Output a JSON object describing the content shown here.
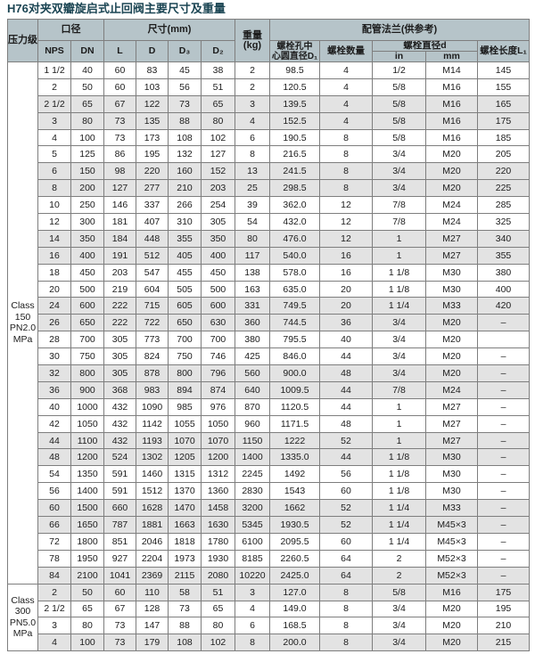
{
  "title": "H76对夹双瓣旋启式止回阀主要尺寸及重量",
  "colors": {
    "header_bg": "#b6c4c9",
    "stripe": "#e3e3e3",
    "border": "#7e7e7e",
    "title_color": "#1b4553"
  },
  "table": {
    "headers": {
      "pressure_class": "压力级",
      "bore": "口径",
      "nps": "NPS",
      "dn": "DN",
      "dims": "尺寸(mm)",
      "l": "L",
      "d": "D",
      "d3": "D₃",
      "d2": "D₂",
      "weight_line1": "重量",
      "weight_line2": "(kg)",
      "flange": "配管法兰(供参考)",
      "bolt_circle_line1": "螺栓孔中",
      "bolt_circle_line2": "心圆直径D₁",
      "bolt_qty": "螺栓数量",
      "bolt_dia": "螺栓直径d",
      "inch": "in",
      "mm": "mm",
      "bolt_len": "螺栓长度L₁"
    },
    "sections": [
      {
        "class_label": [
          "Class",
          "150",
          "PN2.0",
          "MPa"
        ],
        "rows": [
          [
            "1 1/2",
            "40",
            "60",
            "83",
            "45",
            "38",
            "2",
            "98.5",
            "4",
            "1/2",
            "M14",
            "145"
          ],
          [
            "2",
            "50",
            "60",
            "103",
            "56",
            "51",
            "2",
            "120.5",
            "4",
            "5/8",
            "M16",
            "155"
          ],
          [
            "2 1/2",
            "65",
            "67",
            "122",
            "73",
            "65",
            "3",
            "139.5",
            "4",
            "5/8",
            "M16",
            "165"
          ],
          [
            "3",
            "80",
            "73",
            "135",
            "88",
            "80",
            "4",
            "152.5",
            "4",
            "5/8",
            "M16",
            "175"
          ],
          [
            "4",
            "100",
            "73",
            "173",
            "108",
            "102",
            "6",
            "190.5",
            "8",
            "5/8",
            "M16",
            "185"
          ],
          [
            "5",
            "125",
            "86",
            "195",
            "132",
            "127",
            "8",
            "216.5",
            "8",
            "3/4",
            "M20",
            "205"
          ],
          [
            "6",
            "150",
            "98",
            "220",
            "160",
            "152",
            "13",
            "241.5",
            "8",
            "3/4",
            "M20",
            "220"
          ],
          [
            "8",
            "200",
            "127",
            "277",
            "210",
            "203",
            "25",
            "298.5",
            "8",
            "3/4",
            "M20",
            "225"
          ],
          [
            "10",
            "250",
            "146",
            "337",
            "266",
            "254",
            "39",
            "362.0",
            "12",
            "7/8",
            "M24",
            "285"
          ],
          [
            "12",
            "300",
            "181",
            "407",
            "310",
            "305",
            "54",
            "432.0",
            "12",
            "7/8",
            "M24",
            "325"
          ],
          [
            "14",
            "350",
            "184",
            "448",
            "355",
            "350",
            "80",
            "476.0",
            "12",
            "1",
            "M27",
            "340"
          ],
          [
            "16",
            "400",
            "191",
            "512",
            "405",
            "400",
            "117",
            "540.0",
            "16",
            "1",
            "M27",
            "355"
          ],
          [
            "18",
            "450",
            "203",
            "547",
            "455",
            "450",
            "138",
            "578.0",
            "16",
            "1 1/8",
            "M30",
            "380"
          ],
          [
            "20",
            "500",
            "219",
            "604",
            "505",
            "500",
            "163",
            "635.0",
            "20",
            "1 1/8",
            "M30",
            "400"
          ],
          [
            "24",
            "600",
            "222",
            "715",
            "605",
            "600",
            "331",
            "749.5",
            "20",
            "1 1/4",
            "M33",
            "420"
          ],
          [
            "26",
            "650",
            "222",
            "722",
            "650",
            "630",
            "360",
            "744.5",
            "36",
            "3/4",
            "M20",
            "–"
          ],
          [
            "28",
            "700",
            "305",
            "773",
            "700",
            "700",
            "380",
            "795.5",
            "40",
            "3/4",
            "M20",
            ""
          ],
          [
            "30",
            "750",
            "305",
            "824",
            "750",
            "746",
            "425",
            "846.0",
            "44",
            "3/4",
            "M20",
            "–"
          ],
          [
            "32",
            "800",
            "305",
            "878",
            "800",
            "796",
            "560",
            "900.0",
            "48",
            "3/4",
            "M20",
            "–"
          ],
          [
            "36",
            "900",
            "368",
            "983",
            "894",
            "874",
            "640",
            "1009.5",
            "44",
            "7/8",
            "M24",
            "–"
          ],
          [
            "40",
            "1000",
            "432",
            "1090",
            "985",
            "976",
            "870",
            "1120.5",
            "44",
            "1",
            "M27",
            "–"
          ],
          [
            "42",
            "1050",
            "432",
            "1142",
            "1055",
            "1050",
            "960",
            "1171.5",
            "48",
            "1",
            "M27",
            "–"
          ],
          [
            "44",
            "1100",
            "432",
            "1193",
            "1070",
            "1070",
            "1150",
            "1222",
            "52",
            "1",
            "M27",
            "–"
          ],
          [
            "48",
            "1200",
            "524",
            "1302",
            "1205",
            "1200",
            "1400",
            "1335.0",
            "44",
            "1 1/8",
            "M30",
            "–"
          ],
          [
            "54",
            "1350",
            "591",
            "1460",
            "1315",
            "1312",
            "2245",
            "1492",
            "56",
            "1 1/8",
            "M30",
            "–"
          ],
          [
            "56",
            "1400",
            "591",
            "1512",
            "1370",
            "1360",
            "2830",
            "1543",
            "60",
            "1 1/8",
            "M30",
            "–"
          ],
          [
            "60",
            "1500",
            "660",
            "1628",
            "1470",
            "1458",
            "3200",
            "1662",
            "52",
            "1 1/4",
            "M33",
            "–"
          ],
          [
            "66",
            "1650",
            "787",
            "1881",
            "1663",
            "1630",
            "5345",
            "1930.5",
            "52",
            "1 1/4",
            "M45×3",
            "–"
          ],
          [
            "72",
            "1800",
            "851",
            "2046",
            "1818",
            "1780",
            "6100",
            "2095.5",
            "60",
            "1 1/4",
            "M45×3",
            "–"
          ],
          [
            "78",
            "1950",
            "927",
            "2204",
            "1973",
            "1930",
            "8185",
            "2260.5",
            "64",
            "2",
            "M52×3",
            "–"
          ],
          [
            "84",
            "2100",
            "1041",
            "2369",
            "2115",
            "2080",
            "10220",
            "2425.0",
            "64",
            "2",
            "M52×3",
            "–"
          ]
        ]
      },
      {
        "class_label": [
          "Class",
          "300",
          "PN5.0",
          "MPa"
        ],
        "rows": [
          [
            "2",
            "50",
            "60",
            "110",
            "58",
            "51",
            "3",
            "127.0",
            "8",
            "5/8",
            "M16",
            "175"
          ],
          [
            "2 1/2",
            "65",
            "67",
            "128",
            "73",
            "65",
            "4",
            "149.0",
            "8",
            "3/4",
            "M20",
            "195"
          ],
          [
            "3",
            "80",
            "73",
            "147",
            "88",
            "80",
            "6",
            "168.5",
            "8",
            "3/4",
            "M20",
            "210"
          ],
          [
            "4",
            "100",
            "73",
            "179",
            "108",
            "102",
            "8",
            "200.0",
            "8",
            "3/4",
            "M20",
            "215"
          ]
        ]
      }
    ]
  }
}
